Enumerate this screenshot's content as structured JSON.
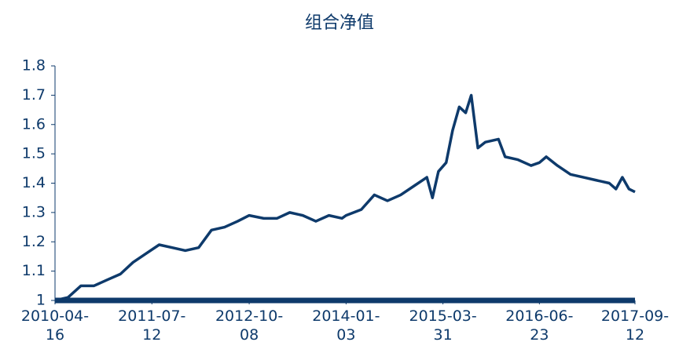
{
  "chart_data": {
    "type": "line",
    "title": "组合净值",
    "x": [
      "2010-04-16",
      "2010-06-15",
      "2010-08-15",
      "2010-10-15",
      "2010-12-15",
      "2011-02-15",
      "2011-04-15",
      "2011-06-15",
      "2011-08-15",
      "2011-10-15",
      "2011-12-15",
      "2012-02-15",
      "2012-04-15",
      "2012-06-15",
      "2012-08-15",
      "2012-10-08",
      "2012-12-15",
      "2013-02-15",
      "2013-04-15",
      "2013-06-15",
      "2013-08-15",
      "2013-10-15",
      "2013-12-15",
      "2014-01-03",
      "2014-03-15",
      "2014-05-15",
      "2014-07-15",
      "2014-09-15",
      "2014-11-15",
      "2015-01-15",
      "2015-02-10",
      "2015-03-10",
      "2015-04-15",
      "2015-05-15",
      "2015-06-15",
      "2015-07-15",
      "2015-08-10",
      "2015-09-10",
      "2015-10-15",
      "2015-12-15",
      "2016-01-15",
      "2016-03-15",
      "2016-05-15",
      "2016-06-23",
      "2016-07-25",
      "2016-09-15",
      "2016-11-15",
      "2017-01-15",
      "2017-03-15",
      "2017-05-15",
      "2017-06-15",
      "2017-07-15",
      "2017-08-15",
      "2017-09-12"
    ],
    "series": [
      {
        "name": "组合净值",
        "color": "#0e3a6b",
        "values": [
          1.0,
          1.01,
          1.05,
          1.05,
          1.07,
          1.09,
          1.13,
          1.16,
          1.19,
          1.18,
          1.17,
          1.18,
          1.24,
          1.25,
          1.27,
          1.29,
          1.28,
          1.28,
          1.3,
          1.29,
          1.27,
          1.29,
          1.28,
          1.29,
          1.31,
          1.36,
          1.34,
          1.36,
          1.39,
          1.42,
          1.35,
          1.44,
          1.47,
          1.58,
          1.66,
          1.64,
          1.7,
          1.52,
          1.54,
          1.55,
          1.49,
          1.48,
          1.46,
          1.47,
          1.49,
          1.46,
          1.43,
          1.42,
          1.41,
          1.4,
          1.38,
          1.42,
          1.38,
          1.37
        ]
      }
    ],
    "xlim": [
      "2010-04-16",
      "2017-09-12"
    ],
    "xticks": [
      "2010-04-16",
      "2011-07-12",
      "2012-10-08",
      "2014-01-03",
      "2015-03-31",
      "2016-06-23",
      "2017-09-12"
    ],
    "ylim": [
      1,
      1.8
    ],
    "yticks": [
      1,
      1.1,
      1.2,
      1.3,
      1.4,
      1.5,
      1.6,
      1.7,
      1.8
    ]
  }
}
